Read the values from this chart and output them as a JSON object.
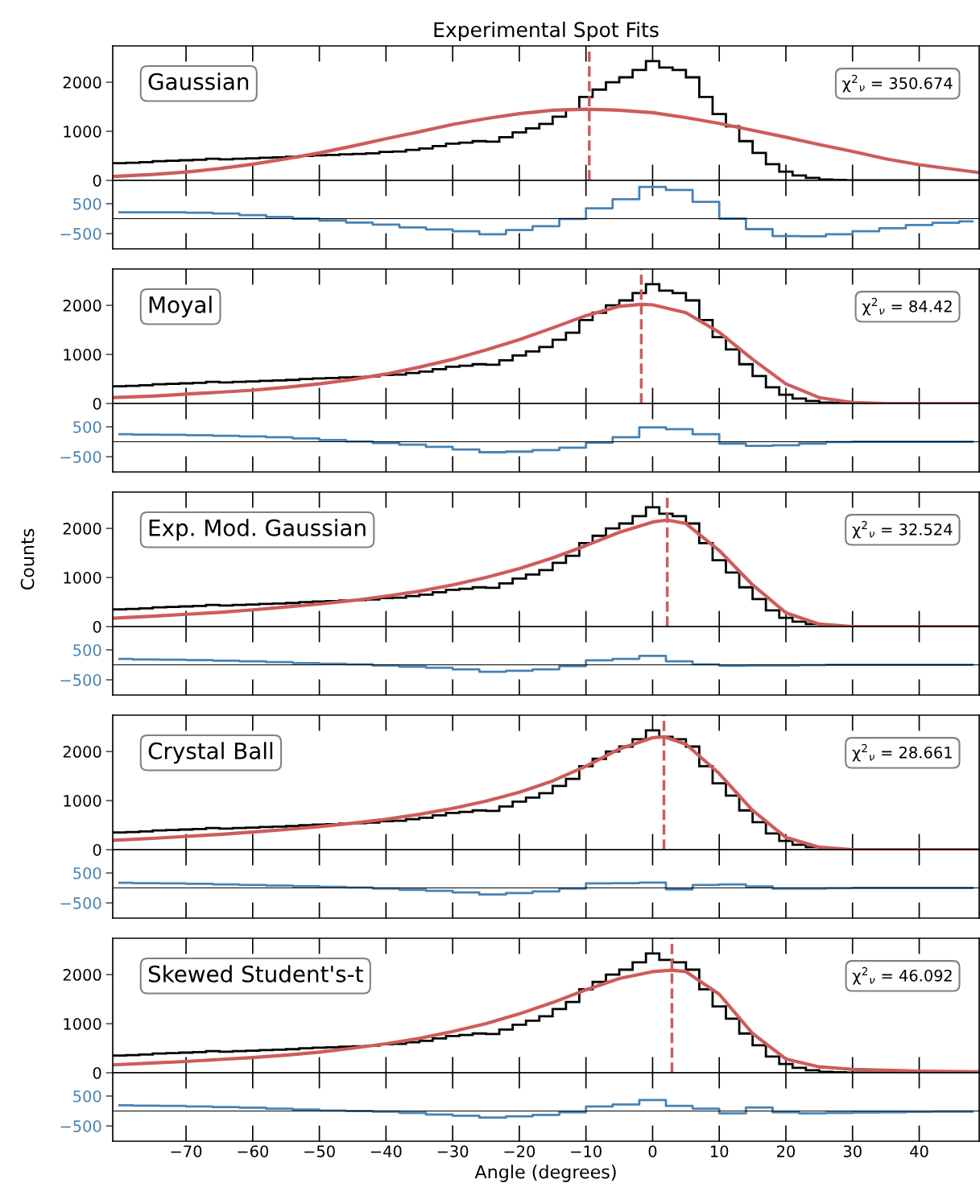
{
  "chart_data": [
    {
      "type": "histogram",
      "title": "Experimental Spot Fits",
      "color": "#000000",
      "annotations": [
        "Gaussian",
        "χ$^{2}$$_{ν}$ = 350.674"
      ],
      "bins": [
        -81,
        -79,
        -77,
        -75,
        -73,
        -71,
        -69,
        -67,
        -65,
        -63,
        -61,
        -59,
        -57,
        -55,
        -53,
        -51,
        -49,
        -47,
        -45,
        -43,
        -41,
        -39,
        -37,
        -35,
        -33,
        -31,
        -29,
        -27,
        -25,
        -23,
        -21,
        -19,
        -17,
        -15,
        -13,
        -11,
        -9,
        -7,
        -5,
        -3,
        -1,
        1,
        3,
        5,
        7,
        9,
        11,
        13,
        15,
        17,
        19,
        21,
        23,
        25,
        27,
        29,
        31,
        33,
        35,
        37,
        39,
        41,
        43,
        45,
        47,
        49
      ],
      "values": [
        350,
        360,
        370,
        390,
        400,
        410,
        420,
        440,
        430,
        440,
        450,
        460,
        470,
        480,
        500,
        510,
        520,
        530,
        540,
        550,
        580,
        590,
        620,
        650,
        700,
        750,
        770,
        800,
        790,
        880,
        980,
        1060,
        1150,
        1300,
        1440,
        1700,
        1850,
        2000,
        2100,
        2250,
        2430,
        2300,
        2250,
        2100,
        1700,
        1350,
        1100,
        800,
        560,
        330,
        180,
        100,
        50,
        20,
        10,
        0,
        0,
        0,
        0,
        0,
        0,
        0,
        0,
        0,
        0
      ],
      "series": [
        {
          "type": "line",
          "color": "#cd5c5c",
          "x": [
            -81,
            -75,
            -70,
            -65,
            -60,
            -55,
            -50,
            -45,
            -40,
            -35,
            -30,
            -25,
            -20,
            -15,
            -10,
            -5,
            0,
            5,
            10,
            15,
            20,
            25,
            30,
            35,
            40,
            45,
            49
          ],
          "values": [
            80,
            120,
            170,
            240,
            330,
            440,
            560,
            700,
            850,
            990,
            1140,
            1260,
            1360,
            1430,
            1450,
            1430,
            1380,
            1280,
            1160,
            1020,
            880,
            730,
            590,
            440,
            320,
            230,
            160
          ]
        }
      ],
      "ref_lines": [
        {
          "axis": "x",
          "value": -9.5,
          "color": "#cd5c5c",
          "line_style": "dashed"
        }
      ],
      "xlim": [
        -81,
        49
      ],
      "xticks": [
        -70,
        -60,
        -50,
        -40,
        -30,
        -20,
        -10,
        0,
        10,
        20,
        30,
        40
      ],
      "ylim": [
        0,
        2740
      ],
      "yticks": [
        0,
        1000,
        2000
      ],
      "tick_labels": "y"
    },
    {
      "type": "step",
      "color": "#4682b4",
      "x": [
        -80,
        -76,
        -72,
        -68,
        -64,
        -60,
        -56,
        -52,
        -48,
        -44,
        -40,
        -36,
        -32,
        -28,
        -24,
        -20,
        -16,
        -12,
        -8,
        -4,
        0,
        4,
        8,
        12,
        16,
        20,
        24,
        28,
        32,
        36,
        40,
        44,
        48
      ],
      "values": [
        210,
        210,
        210,
        200,
        170,
        120,
        60,
        0,
        -60,
        -130,
        -200,
        -290,
        -360,
        -420,
        -520,
        -380,
        -250,
        -10,
        350,
        650,
        1060,
        960,
        560,
        0,
        -350,
        -580,
        -590,
        -520,
        -420,
        -320,
        -210,
        -140,
        -90
      ],
      "ref_lines": [
        {
          "axis": "y",
          "value": 0,
          "color": "#000000",
          "line_style": "solid"
        }
      ],
      "xlim": [
        -81,
        49
      ],
      "xticks": [
        -70,
        -60,
        -50,
        -40,
        -30,
        -20,
        -10,
        0,
        10,
        20,
        30,
        40
      ],
      "ylim": [
        -1010,
        1280
      ],
      "yticks": [
        -500,
        500
      ],
      "tick_labels": "y"
    },
    {
      "type": "histogram",
      "color": "#000000",
      "annotations": [
        "Moyal",
        "χ$^{2}$$_{ν}$ = 84.42"
      ],
      "bins": [
        -81,
        -79,
        -77,
        -75,
        -73,
        -71,
        -69,
        -67,
        -65,
        -63,
        -61,
        -59,
        -57,
        -55,
        -53,
        -51,
        -49,
        -47,
        -45,
        -43,
        -41,
        -39,
        -37,
        -35,
        -33,
        -31,
        -29,
        -27,
        -25,
        -23,
        -21,
        -19,
        -17,
        -15,
        -13,
        -11,
        -9,
        -7,
        -5,
        -3,
        -1,
        1,
        3,
        5,
        7,
        9,
        11,
        13,
        15,
        17,
        19,
        21,
        23,
        25,
        27,
        29,
        31,
        33,
        35,
        37,
        39,
        41,
        43,
        45,
        47,
        49
      ],
      "values": [
        350,
        360,
        370,
        390,
        400,
        410,
        420,
        440,
        430,
        440,
        450,
        460,
        470,
        480,
        500,
        510,
        520,
        530,
        540,
        550,
        580,
        590,
        620,
        650,
        700,
        750,
        770,
        800,
        790,
        880,
        980,
        1060,
        1150,
        1300,
        1440,
        1700,
        1850,
        2000,
        2100,
        2250,
        2430,
        2300,
        2250,
        2100,
        1700,
        1350,
        1100,
        800,
        560,
        330,
        180,
        100,
        50,
        20,
        10,
        0,
        0,
        0,
        0,
        0,
        0,
        0,
        0,
        0,
        0
      ],
      "series": [
        {
          "type": "line",
          "color": "#cd5c5c",
          "x": [
            -81,
            -75,
            -70,
            -65,
            -60,
            -55,
            -50,
            -45,
            -40,
            -35,
            -30,
            -25,
            -20,
            -15,
            -10,
            -5,
            -1.7,
            0,
            5,
            10,
            15,
            20,
            25,
            30,
            35,
            40,
            49
          ],
          "values": [
            120,
            150,
            190,
            230,
            270,
            330,
            400,
            490,
            600,
            740,
            900,
            1090,
            1300,
            1540,
            1790,
            1980,
            2020,
            2010,
            1850,
            1450,
            900,
            400,
            120,
            20,
            0,
            0,
            0
          ]
        }
      ],
      "ref_lines": [
        {
          "axis": "x",
          "value": -1.7,
          "color": "#cd5c5c",
          "line_style": "dashed"
        }
      ],
      "xlim": [
        -81,
        49
      ],
      "xticks": [
        -70,
        -60,
        -50,
        -40,
        -30,
        -20,
        -10,
        0,
        10,
        20,
        30,
        40
      ],
      "ylim": [
        0,
        2740
      ],
      "yticks": [
        0,
        1000,
        2000
      ],
      "tick_labels": "y"
    },
    {
      "type": "step",
      "color": "#4682b4",
      "x": [
        -80,
        -76,
        -72,
        -68,
        -64,
        -60,
        -56,
        -52,
        -48,
        -44,
        -40,
        -36,
        -32,
        -28,
        -24,
        -20,
        -16,
        -12,
        -8,
        -4,
        0,
        4,
        8,
        12,
        16,
        20,
        24,
        28,
        32,
        36,
        40,
        44,
        48
      ],
      "values": [
        250,
        240,
        230,
        220,
        200,
        180,
        150,
        110,
        60,
        10,
        -40,
        -100,
        -170,
        -260,
        -350,
        -330,
        -280,
        -200,
        -30,
        150,
        480,
        420,
        250,
        -60,
        -140,
        -120,
        -60,
        -10,
        0,
        0,
        0,
        0,
        0
      ],
      "ref_lines": [
        {
          "axis": "y",
          "value": 0,
          "color": "#000000",
          "line_style": "solid"
        }
      ],
      "xlim": [
        -81,
        49
      ],
      "xticks": [
        -70,
        -60,
        -50,
        -40,
        -30,
        -20,
        -10,
        0,
        10,
        20,
        30,
        40
      ],
      "ylim": [
        -1010,
        1280
      ],
      "yticks": [
        -500,
        500
      ],
      "tick_labels": "y"
    },
    {
      "type": "histogram",
      "color": "#000000",
      "ylabel": "Counts",
      "annotations": [
        "Exp. Mod. Gaussian",
        "χ$^{2}$$_{ν}$ = 32.524"
      ],
      "bins": [
        -81,
        -79,
        -77,
        -75,
        -73,
        -71,
        -69,
        -67,
        -65,
        -63,
        -61,
        -59,
        -57,
        -55,
        -53,
        -51,
        -49,
        -47,
        -45,
        -43,
        -41,
        -39,
        -37,
        -35,
        -33,
        -31,
        -29,
        -27,
        -25,
        -23,
        -21,
        -19,
        -17,
        -15,
        -13,
        -11,
        -9,
        -7,
        -5,
        -3,
        -1,
        1,
        3,
        5,
        7,
        9,
        11,
        13,
        15,
        17,
        19,
        21,
        23,
        25,
        27,
        29,
        31,
        33,
        35,
        37,
        39,
        41,
        43,
        45,
        47,
        49
      ],
      "values": [
        350,
        360,
        370,
        390,
        400,
        410,
        420,
        440,
        430,
        440,
        450,
        460,
        470,
        480,
        500,
        510,
        520,
        530,
        540,
        550,
        580,
        590,
        620,
        650,
        700,
        750,
        770,
        800,
        790,
        880,
        980,
        1060,
        1150,
        1300,
        1440,
        1700,
        1850,
        2000,
        2100,
        2250,
        2430,
        2300,
        2250,
        2100,
        1700,
        1350,
        1100,
        800,
        560,
        330,
        180,
        100,
        50,
        20,
        10,
        0,
        0,
        0,
        0,
        0,
        0,
        0,
        0,
        0,
        0
      ],
      "series": [
        {
          "type": "line",
          "color": "#cd5c5c",
          "x": [
            -81,
            -75,
            -70,
            -65,
            -60,
            -55,
            -50,
            -45,
            -40,
            -35,
            -30,
            -25,
            -20,
            -15,
            -10,
            -5,
            0,
            2.2,
            5,
            10,
            15,
            20,
            25,
            30,
            35,
            40,
            49
          ],
          "values": [
            170,
            210,
            250,
            290,
            340,
            400,
            460,
            530,
            620,
            720,
            850,
            1000,
            1180,
            1400,
            1650,
            1920,
            2130,
            2170,
            2100,
            1550,
            850,
            280,
            50,
            0,
            0,
            0,
            0
          ]
        }
      ],
      "ref_lines": [
        {
          "axis": "x",
          "value": 2.2,
          "color": "#cd5c5c",
          "line_style": "dashed"
        }
      ],
      "xlim": [
        -81,
        49
      ],
      "xticks": [
        -70,
        -60,
        -50,
        -40,
        -30,
        -20,
        -10,
        0,
        10,
        20,
        30,
        40
      ],
      "ylim": [
        0,
        2740
      ],
      "yticks": [
        0,
        1000,
        2000
      ],
      "tick_labels": "y"
    },
    {
      "type": "step",
      "color": "#4682b4",
      "x": [
        -80,
        -76,
        -72,
        -68,
        -64,
        -60,
        -56,
        -52,
        -48,
        -44,
        -40,
        -36,
        -32,
        -28,
        -24,
        -20,
        -16,
        -12,
        -8,
        -4,
        0,
        4,
        8,
        12,
        16,
        20,
        24,
        28,
        32,
        36,
        40,
        44,
        48
      ],
      "values": [
        200,
        180,
        170,
        160,
        140,
        120,
        90,
        60,
        40,
        20,
        -20,
        -60,
        -100,
        -150,
        -230,
        -200,
        -150,
        -40,
        150,
        200,
        300,
        120,
        20,
        -30,
        -20,
        -20,
        -10,
        0,
        0,
        0,
        0,
        0,
        0
      ],
      "ref_lines": [
        {
          "axis": "y",
          "value": 0,
          "color": "#000000",
          "line_style": "solid"
        }
      ],
      "xlim": [
        -81,
        49
      ],
      "xticks": [
        -70,
        -60,
        -50,
        -40,
        -30,
        -20,
        -10,
        0,
        10,
        20,
        30,
        40
      ],
      "ylim": [
        -1010,
        1280
      ],
      "yticks": [
        -500,
        500
      ],
      "tick_labels": "y"
    },
    {
      "type": "histogram",
      "color": "#000000",
      "annotations": [
        "Crystal Ball",
        "χ$^{2}$$_{ν}$ = 28.661"
      ],
      "bins": [
        -81,
        -79,
        -77,
        -75,
        -73,
        -71,
        -69,
        -67,
        -65,
        -63,
        -61,
        -59,
        -57,
        -55,
        -53,
        -51,
        -49,
        -47,
        -45,
        -43,
        -41,
        -39,
        -37,
        -35,
        -33,
        -31,
        -29,
        -27,
        -25,
        -23,
        -21,
        -19,
        -17,
        -15,
        -13,
        -11,
        -9,
        -7,
        -5,
        -3,
        -1,
        1,
        3,
        5,
        7,
        9,
        11,
        13,
        15,
        17,
        19,
        21,
        23,
        25,
        27,
        29,
        31,
        33,
        35,
        37,
        39,
        41,
        43,
        45,
        47,
        49
      ],
      "values": [
        350,
        360,
        370,
        390,
        400,
        410,
        420,
        440,
        430,
        440,
        450,
        460,
        470,
        480,
        500,
        510,
        520,
        530,
        540,
        550,
        580,
        590,
        620,
        650,
        700,
        750,
        770,
        800,
        790,
        880,
        980,
        1060,
        1150,
        1300,
        1440,
        1700,
        1850,
        2000,
        2100,
        2250,
        2430,
        2300,
        2250,
        2100,
        1700,
        1350,
        1100,
        800,
        560,
        330,
        180,
        100,
        50,
        20,
        10,
        0,
        0,
        0,
        0,
        0,
        0,
        0,
        0,
        0,
        0
      ],
      "series": [
        {
          "type": "line",
          "color": "#cd5c5c",
          "x": [
            -81,
            -75,
            -70,
            -65,
            -60,
            -55,
            -50,
            -45,
            -40,
            -35,
            -30,
            -25,
            -20,
            -15,
            -10,
            -5,
            0,
            1.7,
            5,
            10,
            15,
            20,
            25,
            30,
            35,
            40,
            49
          ],
          "values": [
            190,
            230,
            270,
            310,
            360,
            410,
            470,
            540,
            620,
            720,
            840,
            990,
            1170,
            1400,
            1700,
            2050,
            2280,
            2300,
            2150,
            1550,
            800,
            250,
            50,
            0,
            0,
            0,
            0
          ]
        }
      ],
      "ref_lines": [
        {
          "axis": "x",
          "value": 1.7,
          "color": "#cd5c5c",
          "line_style": "dashed"
        }
      ],
      "xlim": [
        -81,
        49
      ],
      "xticks": [
        -70,
        -60,
        -50,
        -40,
        -30,
        -20,
        -10,
        0,
        10,
        20,
        30,
        40
      ],
      "ylim": [
        0,
        2740
      ],
      "yticks": [
        0,
        1000,
        2000
      ],
      "tick_labels": "y"
    },
    {
      "type": "step",
      "color": "#4682b4",
      "x": [
        -80,
        -76,
        -72,
        -68,
        -64,
        -60,
        -56,
        -52,
        -48,
        -44,
        -40,
        -36,
        -32,
        -28,
        -24,
        -20,
        -16,
        -12,
        -8,
        -4,
        0,
        4,
        8,
        12,
        16,
        20,
        24,
        28,
        32,
        36,
        40,
        44,
        48
      ],
      "values": [
        170,
        160,
        150,
        140,
        120,
        100,
        80,
        60,
        40,
        20,
        -20,
        -60,
        -100,
        -150,
        -220,
        -170,
        -120,
        -20,
        150,
        160,
        180,
        -50,
        100,
        120,
        50,
        -20,
        -20,
        -10,
        0,
        0,
        0,
        0,
        0
      ],
      "ref_lines": [
        {
          "axis": "y",
          "value": 0,
          "color": "#000000",
          "line_style": "solid"
        }
      ],
      "xlim": [
        -81,
        49
      ],
      "xticks": [
        -70,
        -60,
        -50,
        -40,
        -30,
        -20,
        -10,
        0,
        10,
        20,
        30,
        40
      ],
      "ylim": [
        -1010,
        1280
      ],
      "yticks": [
        -500,
        500
      ],
      "tick_labels": "y"
    },
    {
      "type": "histogram",
      "color": "#000000",
      "annotations": [
        "Skewed Student's-t",
        "χ$^{2}$$_{ν}$ = 46.092"
      ],
      "bins": [
        -81,
        -79,
        -77,
        -75,
        -73,
        -71,
        -69,
        -67,
        -65,
        -63,
        -61,
        -59,
        -57,
        -55,
        -53,
        -51,
        -49,
        -47,
        -45,
        -43,
        -41,
        -39,
        -37,
        -35,
        -33,
        -31,
        -29,
        -27,
        -25,
        -23,
        -21,
        -19,
        -17,
        -15,
        -13,
        -11,
        -9,
        -7,
        -5,
        -3,
        -1,
        1,
        3,
        5,
        7,
        9,
        11,
        13,
        15,
        17,
        19,
        21,
        23,
        25,
        27,
        29,
        31,
        33,
        35,
        37,
        39,
        41,
        43,
        45,
        47,
        49
      ],
      "values": [
        350,
        360,
        370,
        390,
        400,
        410,
        420,
        440,
        430,
        440,
        450,
        460,
        470,
        480,
        500,
        510,
        520,
        530,
        540,
        550,
        580,
        590,
        620,
        650,
        700,
        750,
        770,
        800,
        790,
        880,
        980,
        1060,
        1150,
        1300,
        1440,
        1700,
        1850,
        2000,
        2100,
        2250,
        2430,
        2300,
        2250,
        2100,
        1700,
        1350,
        1100,
        800,
        560,
        330,
        180,
        100,
        50,
        20,
        10,
        0,
        0,
        0,
        0,
        0,
        0,
        0,
        0,
        0,
        0
      ],
      "series": [
        {
          "type": "line",
          "color": "#cd5c5c",
          "x": [
            -81,
            -75,
            -70,
            -65,
            -60,
            -55,
            -50,
            -45,
            -40,
            -35,
            -30,
            -25,
            -20,
            -15,
            -10,
            -5,
            0,
            2.9,
            5,
            10,
            15,
            20,
            25,
            30,
            35,
            40,
            49
          ],
          "values": [
            160,
            200,
            230,
            270,
            310,
            360,
            420,
            500,
            590,
            700,
            840,
            1000,
            1200,
            1430,
            1690,
            1920,
            2060,
            2090,
            2060,
            1600,
            800,
            280,
            120,
            70,
            50,
            30,
            20
          ]
        }
      ],
      "ref_lines": [
        {
          "axis": "x",
          "value": 2.9,
          "color": "#cd5c5c",
          "line_style": "dashed"
        }
      ],
      "xlim": [
        -81,
        49
      ],
      "xticks": [
        -70,
        -60,
        -50,
        -40,
        -30,
        -20,
        -10,
        0,
        10,
        20,
        30,
        40
      ],
      "ylim": [
        0,
        2740
      ],
      "yticks": [
        0,
        1000,
        2000
      ],
      "tick_labels": "y"
    },
    {
      "type": "step",
      "color": "#4682b4",
      "xlabel": "Angle (degrees)",
      "x": [
        -80,
        -76,
        -72,
        -68,
        -64,
        -60,
        -56,
        -52,
        -48,
        -44,
        -40,
        -36,
        -32,
        -28,
        -24,
        -20,
        -16,
        -12,
        -8,
        -4,
        0,
        4,
        8,
        12,
        16,
        20,
        24,
        28,
        32,
        36,
        40,
        44,
        48
      ],
      "values": [
        190,
        180,
        170,
        150,
        130,
        110,
        80,
        50,
        20,
        0,
        -20,
        -60,
        -120,
        -160,
        -220,
        -180,
        -130,
        -40,
        150,
        220,
        370,
        170,
        80,
        -80,
        120,
        -40,
        -80,
        -60,
        -50,
        -40,
        -30,
        -20,
        -20
      ],
      "ref_lines": [
        {
          "axis": "y",
          "value": 0,
          "color": "#000000",
          "line_style": "solid"
        }
      ],
      "xlim": [
        -81,
        49
      ],
      "xticks": [
        -70,
        -60,
        -50,
        -40,
        -30,
        -20,
        -10,
        0,
        10,
        20,
        30,
        40
      ],
      "ylim": [
        -1010,
        1280
      ],
      "yticks": [
        -500,
        500
      ]
    }
  ]
}
